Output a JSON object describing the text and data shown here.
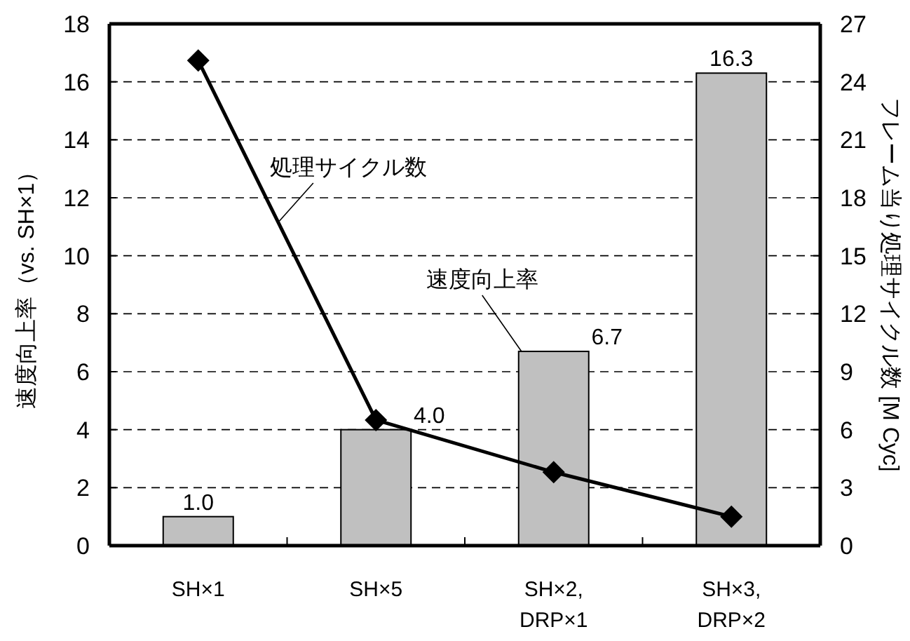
{
  "chart_data": {
    "type": "bar",
    "categories": [
      "SH×1",
      "SH×5",
      "SH×2,\nDRP×1",
      "SH×3,\nDRP×2"
    ],
    "ylabel": "速度向上率（vs. SH×1）",
    "y2label": "フレーム当り処理サイクル数 [M Cyc]",
    "ylim": [
      0,
      18
    ],
    "yticks": [
      0,
      2,
      4,
      6,
      8,
      10,
      12,
      14,
      16,
      18
    ],
    "y2lim": [
      0,
      27
    ],
    "y2ticks": [
      0,
      3,
      6,
      9,
      12,
      15,
      18,
      21,
      24,
      27
    ],
    "grid": "y",
    "marker": "diamond",
    "line_style": "solid",
    "series": [
      {
        "name": "速度向上率",
        "color": "#c0c0c0",
        "values": [
          1.0,
          4.0,
          6.7,
          16.3
        ],
        "value_labels": [
          "1.0",
          "4.0",
          "6.7",
          "16.3"
        ]
      },
      {
        "name": "処理サイクル数",
        "type": "line",
        "axis": "y2",
        "color": "#000000",
        "values": [
          25.1,
          6.5,
          3.8,
          1.5
        ]
      }
    ]
  }
}
